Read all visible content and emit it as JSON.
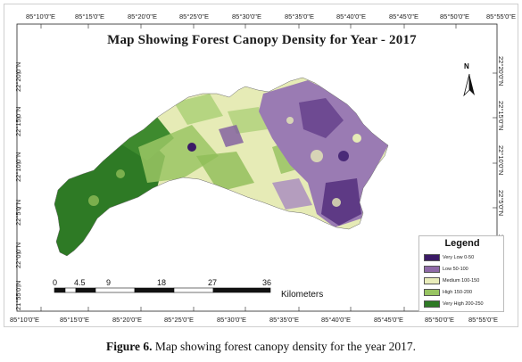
{
  "title": "Map Showing Forest Canopy Density for Year - 2017",
  "longitude_ticks": [
    "85°10'0\"E",
    "85°15'0\"E",
    "85°20'0\"E",
    "85°25'0\"E",
    "85°30'0\"E",
    "85°35'0\"E",
    "85°40'0\"E",
    "85°45'0\"E",
    "85°50'0\"E",
    "85°55'0\"E"
  ],
  "latitude_ticks": [
    "22°20'0\"N",
    "22°15'0\"N",
    "22°10'0\"N",
    "22°5'0\"N",
    "22°0'0\"N",
    "21°55'0\"N"
  ],
  "north_arrow": {
    "label": "N",
    "icon": "north-arrow-icon"
  },
  "legend": {
    "title": "Legend",
    "items": [
      {
        "label": "Very Low 0-50",
        "color": "#3b1a66"
      },
      {
        "label": "Low 50-100",
        "color": "#8f6aa8"
      },
      {
        "label": "Medium 100-150",
        "color": "#e9edba"
      },
      {
        "label": "High 150-200",
        "color": "#98c462"
      },
      {
        "label": "Very High 200-250",
        "color": "#2e7a25"
      }
    ]
  },
  "scale_bar": {
    "labels": [
      "0",
      "4.5",
      "9",
      "18",
      "27",
      "36"
    ],
    "unit": "Kilometers"
  },
  "caption": {
    "prefix": "Figure 6.",
    "text": " Map showing forest canopy density for the year 2017."
  }
}
